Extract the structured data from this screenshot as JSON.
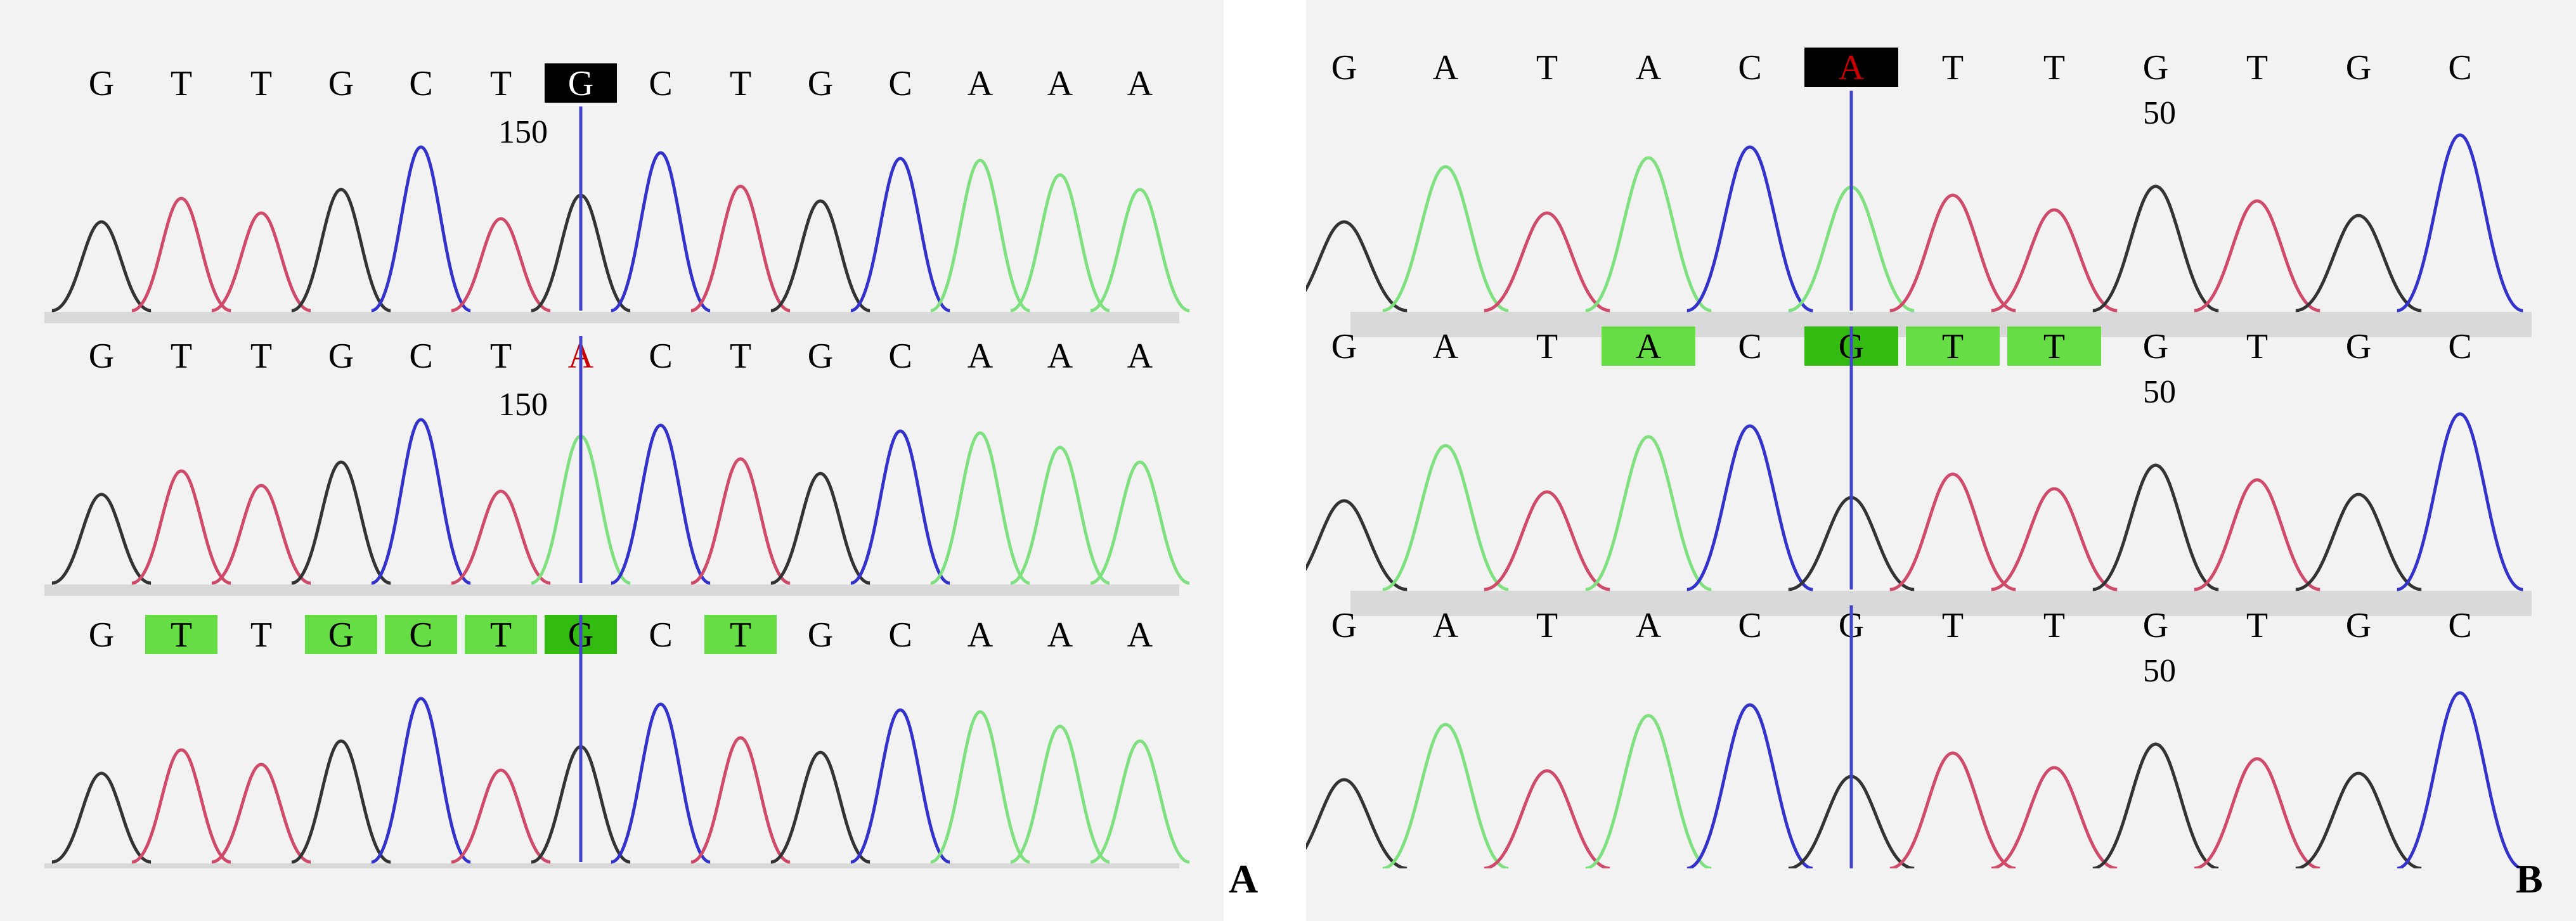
{
  "colors": {
    "A": "#7fe07f",
    "C": "#3333cc",
    "G": "#333333",
    "T": "#d04a6a",
    "cursor": "#4444cc",
    "highlight_dark": "#000000",
    "highlight_green": "#66dd44",
    "highlight_green_dark": "#33bb11",
    "mutation_text": "#cc0000",
    "track": "#d9d9d9"
  },
  "panels": [
    {
      "id": "A",
      "label": "A",
      "rows": [
        {
          "bases": [
            "G",
            "T",
            "T",
            "G",
            "C",
            "T",
            "G",
            "C",
            "T",
            "G",
            "C",
            "A",
            "A",
            "A"
          ],
          "marks": [
            "",
            "",
            "",
            "",
            "",
            "",
            "black",
            "",
            "",
            "",
            "",
            "",
            "",
            ""
          ],
          "red_base": -1,
          "position_label": "150",
          "cursor_index": 6
        },
        {
          "bases": [
            "G",
            "T",
            "T",
            "G",
            "C",
            "T",
            "A",
            "C",
            "T",
            "G",
            "C",
            "A",
            "A",
            "A"
          ],
          "marks": [
            "",
            "",
            "",
            "",
            "",
            "",
            "",
            "",
            "",
            "",
            "",
            "",
            "",
            ""
          ],
          "red_base": 6,
          "position_label": "150",
          "cursor_index": 6
        },
        {
          "bases": [
            "G",
            "T",
            "T",
            "G",
            "C",
            "T",
            "G",
            "C",
            "T",
            "G",
            "C",
            "A",
            "A",
            "A"
          ],
          "marks": [
            "",
            "green",
            "",
            "green",
            "green",
            "green",
            "greendark",
            "",
            "green",
            "",
            "",
            "",
            "",
            ""
          ],
          "red_base": -1,
          "position_label": "",
          "cursor_index": 6
        }
      ]
    },
    {
      "id": "B",
      "label": "B",
      "rows": [
        {
          "bases": [
            "G",
            "A",
            "T",
            "A",
            "C",
            "A",
            "T",
            "T",
            "G",
            "T",
            "G",
            "C"
          ],
          "marks": [
            "",
            "",
            "",
            "",
            "",
            "blackred",
            "",
            "",
            "",
            "",
            "",
            ""
          ],
          "red_base": 5,
          "position_label": "50",
          "cursor_index": 5
        },
        {
          "bases": [
            "G",
            "A",
            "T",
            "A",
            "C",
            "G",
            "T",
            "T",
            "G",
            "T",
            "G",
            "C"
          ],
          "marks": [
            "",
            "",
            "",
            "green",
            "",
            "greendark",
            "green",
            "green",
            "",
            "",
            "",
            ""
          ],
          "red_base": -1,
          "position_label": "50",
          "cursor_index": 5
        },
        {
          "bases": [
            "G",
            "A",
            "T",
            "A",
            "C",
            "G",
            "T",
            "T",
            "G",
            "T",
            "G",
            "C"
          ],
          "marks": [
            "",
            "",
            "",
            "",
            "",
            "",
            "",
            "",
            "",
            "",
            "",
            ""
          ],
          "red_base": -1,
          "position_label": "50",
          "cursor_index": 5
        }
      ]
    }
  ]
}
